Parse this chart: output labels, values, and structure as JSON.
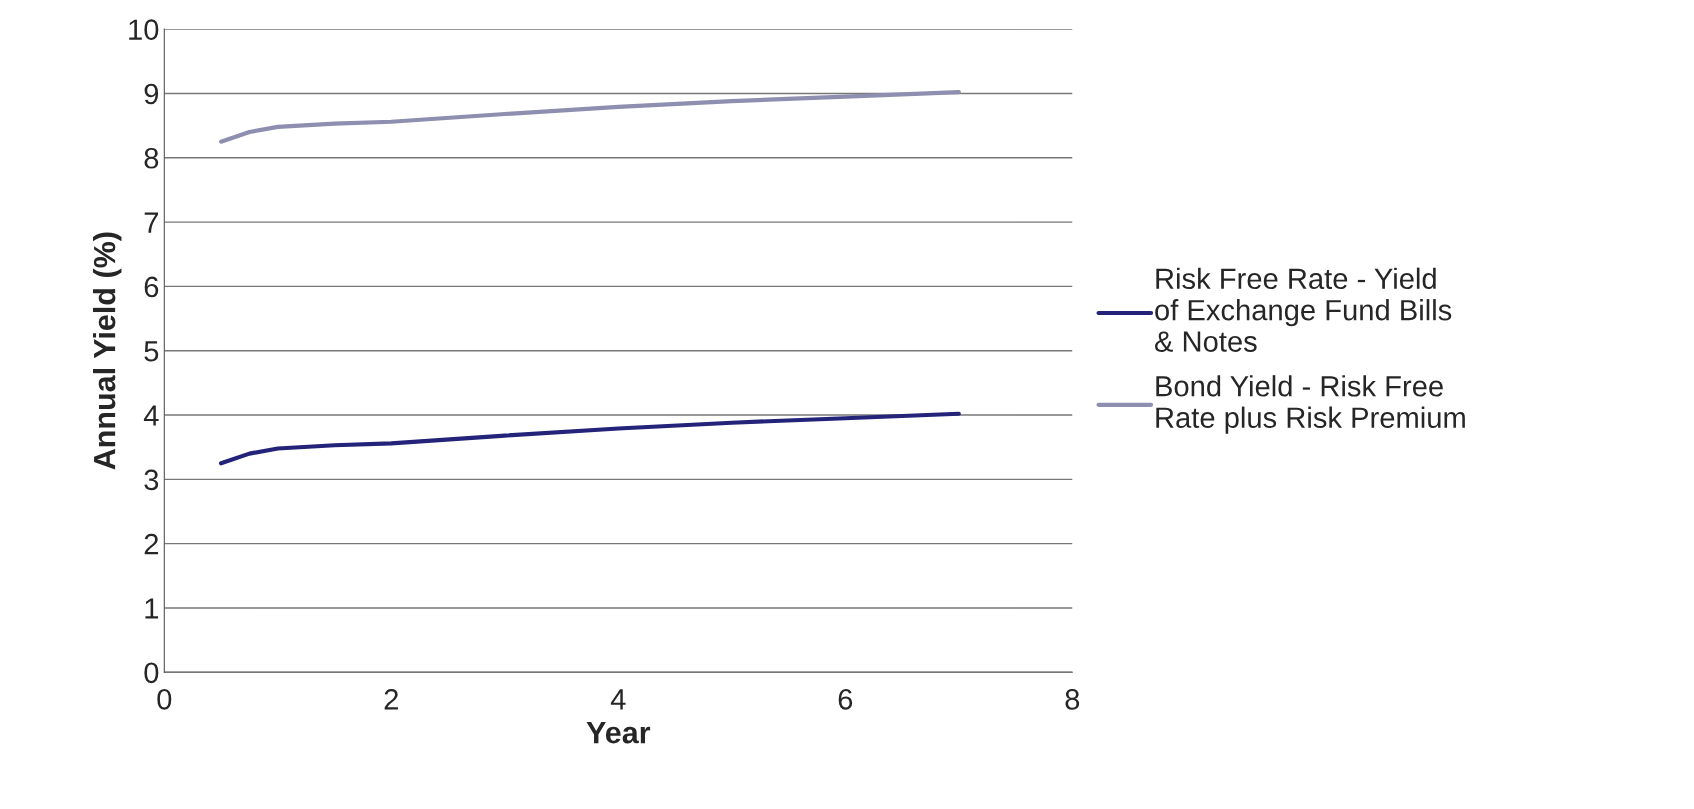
{
  "chart_data": {
    "type": "line",
    "xlabel": "Year",
    "ylabel": "Annual Yield (%)",
    "x": [
      0.5,
      0.75,
      1,
      1.5,
      2,
      3,
      4,
      5,
      6,
      7
    ],
    "series": [
      {
        "name": "Risk Free Rate - Yield of Exchange Fund Bills & Notes",
        "color": "#23237a",
        "values": [
          3.25,
          3.4,
          3.48,
          3.53,
          3.56,
          3.68,
          3.79,
          3.88,
          3.95,
          4.02
        ]
      },
      {
        "name": "Bond Yield - Risk Free Rate plus Risk Premium",
        "color": "#8e8eb0",
        "values": [
          8.25,
          8.4,
          8.48,
          8.53,
          8.56,
          8.68,
          8.79,
          8.88,
          8.95,
          9.02
        ]
      }
    ],
    "xlim": [
      0,
      8
    ],
    "xticks": [
      0,
      2,
      4,
      6,
      8
    ],
    "ylim": [
      0,
      10
    ],
    "yticks": [
      0,
      1,
      2,
      3,
      4,
      5,
      6,
      7,
      8,
      9,
      10
    ],
    "grid": "y",
    "legend": "right",
    "marker": "none",
    "line_style": "solid"
  }
}
